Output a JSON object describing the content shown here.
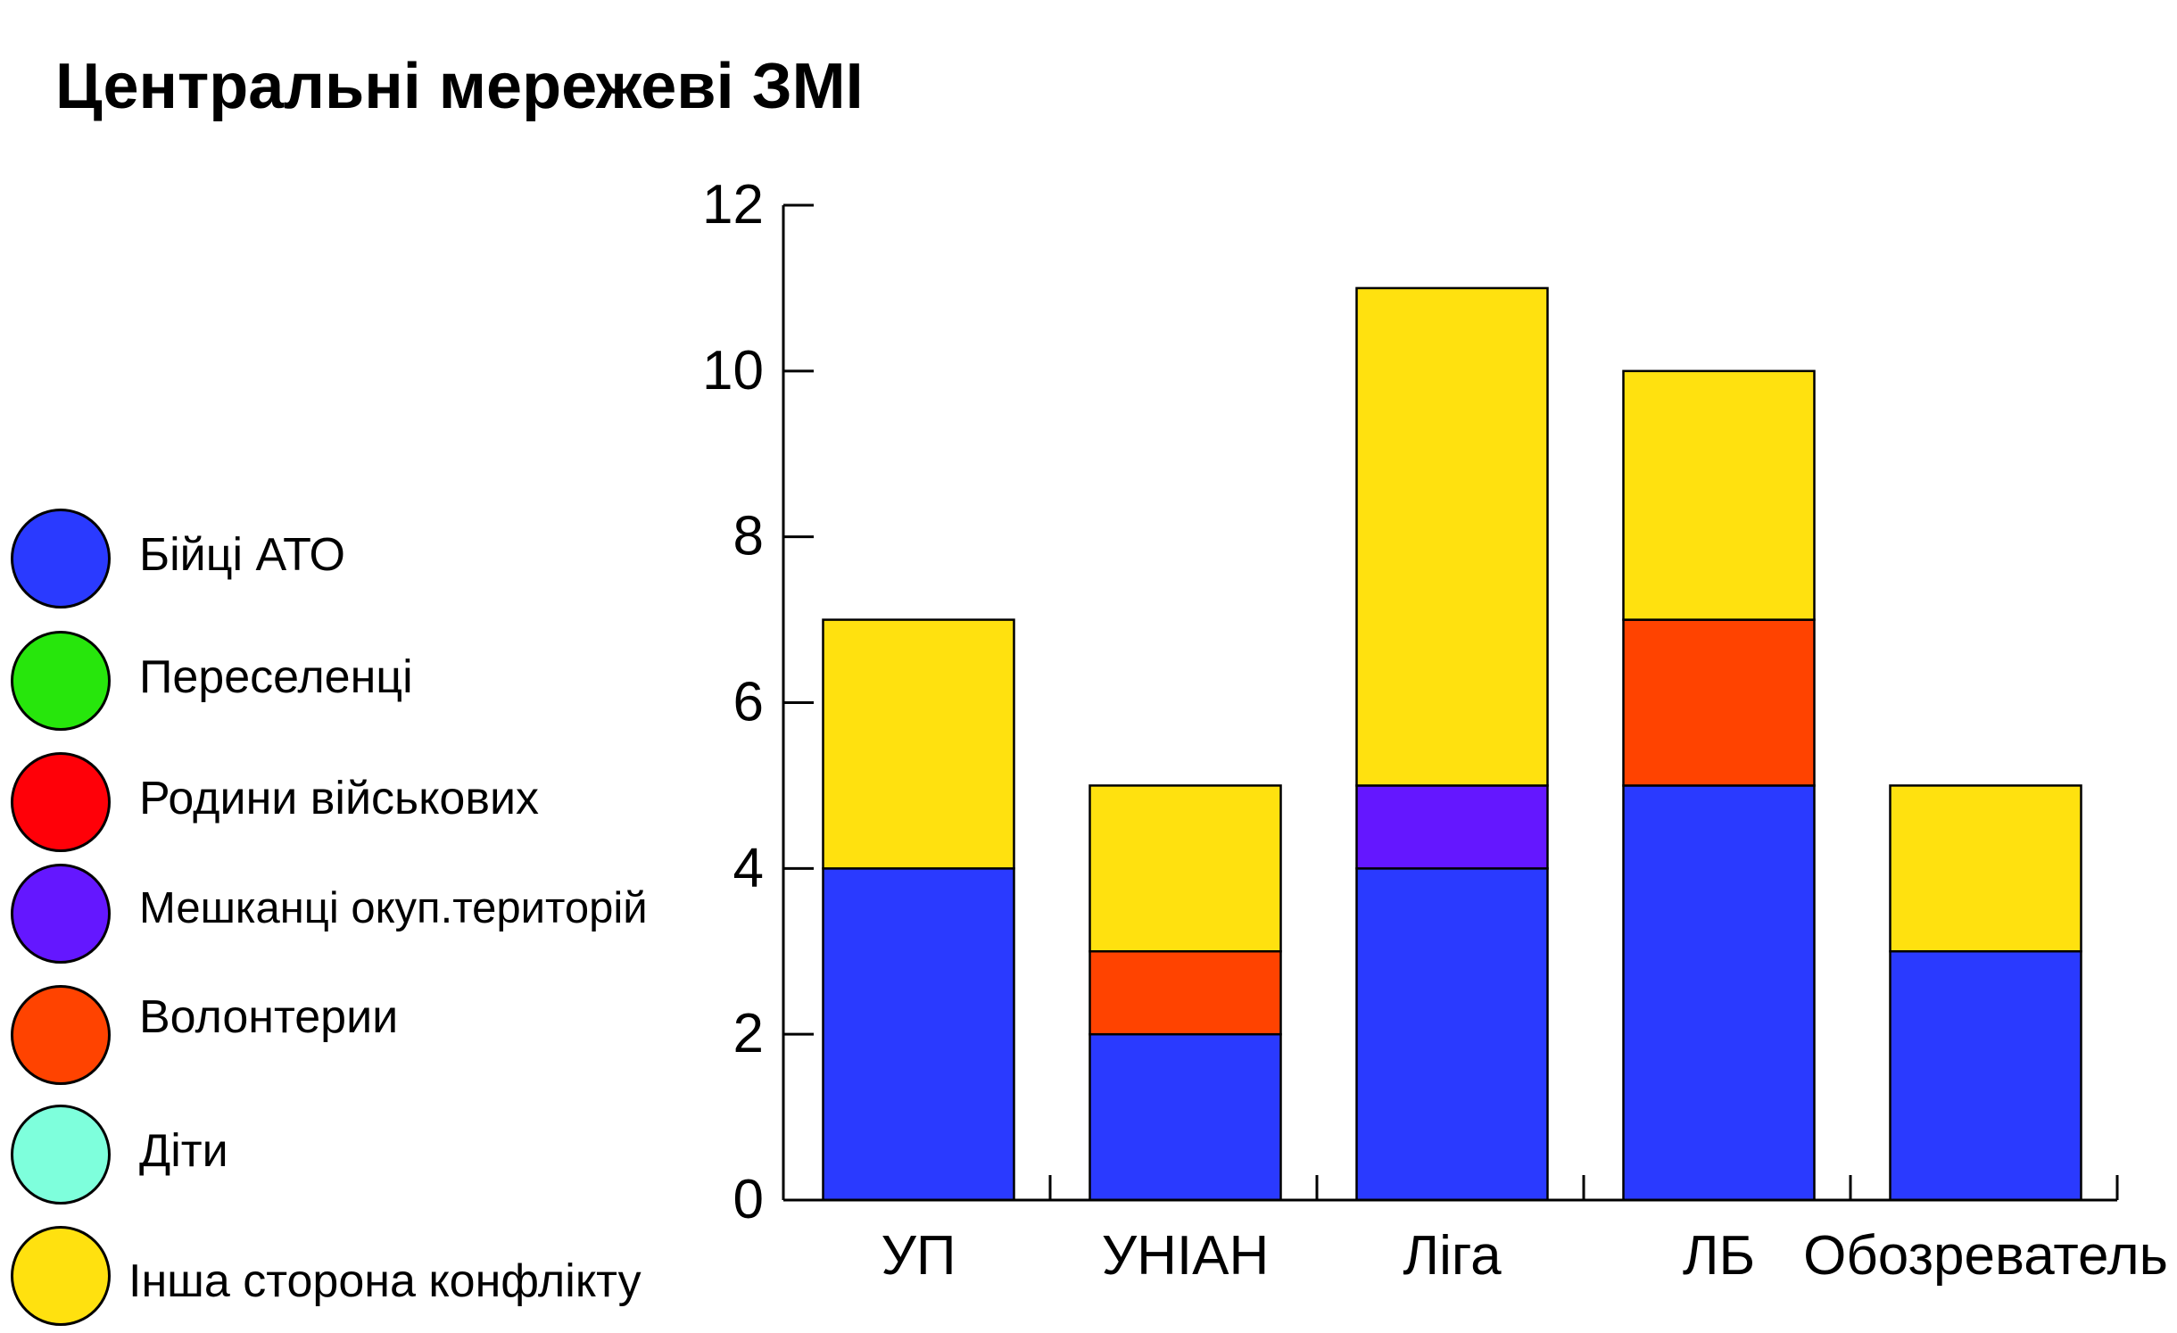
{
  "chart_data": {
    "type": "bar",
    "stacked": true,
    "title": "Центральні мережеві ЗМІ",
    "xlabel": "",
    "ylabel": "",
    "ylim": [
      0,
      12
    ],
    "yticks": [
      "0",
      "2",
      "4",
      "6",
      "8",
      "10",
      "12"
    ],
    "categories": [
      "УП",
      "УНІАН",
      "Ліга",
      "ЛБ",
      "Обозреватель"
    ],
    "series": [
      {
        "name": "Бійці АТО",
        "color": "#2a3aff",
        "values": [
          4,
          2,
          4,
          5,
          3
        ]
      },
      {
        "name": "Переселенці",
        "color": "#27e60c",
        "values": [
          0,
          0,
          0,
          0,
          0
        ]
      },
      {
        "name": "Родини військових",
        "color": "#ff0008",
        "values": [
          0,
          0,
          0,
          0,
          0
        ]
      },
      {
        "name": "Мешканці окуп.територій",
        "color": "#6417ff",
        "values": [
          0,
          0,
          1,
          0,
          0
        ]
      },
      {
        "name": "Волонтерии",
        "color": "#ff4300",
        "values": [
          0,
          1,
          0,
          2,
          0
        ]
      },
      {
        "name": "Діти",
        "color": "#7effdc",
        "values": [
          0,
          0,
          0,
          0,
          0
        ]
      },
      {
        "name": "Інша сторона конфлікту",
        "color": "#ffe10f",
        "values": [
          3,
          2,
          6,
          3,
          2
        ]
      }
    ],
    "grid": false,
    "legend_position": "left"
  }
}
